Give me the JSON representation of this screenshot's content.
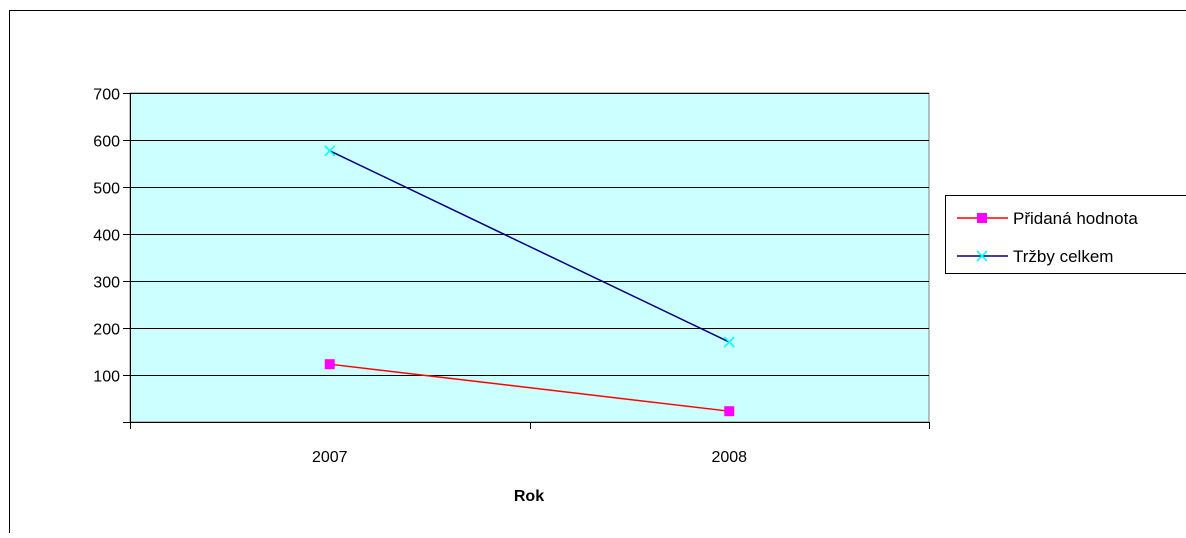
{
  "chart_data": {
    "type": "line",
    "title": "",
    "xlabel": "Rok",
    "ylabel": "",
    "categories": [
      "2007",
      "2008"
    ],
    "ylim": [
      0,
      700
    ],
    "yticks": [
      0,
      100,
      200,
      300,
      400,
      500,
      600,
      700
    ],
    "ytick_labels": [
      "",
      "100",
      "200",
      "300",
      "400",
      "500",
      "600",
      "700"
    ],
    "grid": true,
    "legend_position": "right",
    "plot_background": "#ccffff",
    "series": [
      {
        "name": "Přidaná hodnota",
        "values": [
          123,
          23
        ],
        "color": "#ff0000",
        "marker": "square",
        "marker_color": "#ff00ff"
      },
      {
        "name": "Tržby celkem",
        "values": [
          577,
          170
        ],
        "color": "#000080",
        "marker": "x",
        "marker_color": "#00ffff"
      }
    ]
  }
}
